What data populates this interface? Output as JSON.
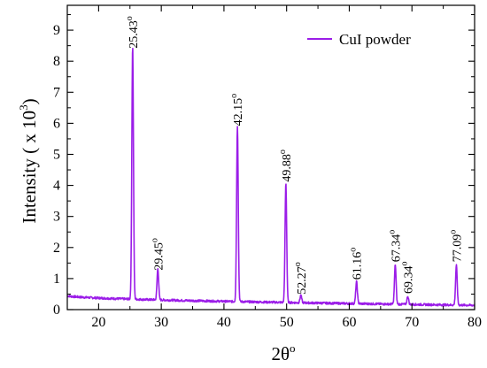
{
  "chart_data": {
    "type": "line",
    "title": "",
    "xlabel": "2θ",
    "xlabel_sup": "o",
    "ylabel": "Intensity ( x 10",
    "ylabel_sup": "3",
    "ylabel_tail": ")",
    "xlim": [
      15,
      80
    ],
    "ylim": [
      0,
      9.8
    ],
    "x_ticks": [
      20,
      30,
      40,
      50,
      60,
      70,
      80
    ],
    "y_ticks": [
      0,
      1,
      2,
      3,
      4,
      5,
      6,
      7,
      8,
      9
    ],
    "grid": false,
    "legend_position": "top-right",
    "series": [
      {
        "name": "CuI powder",
        "color": "#9b1de8",
        "baseline_start": 0.45,
        "baseline_end": 0.14,
        "peaks": [
          {
            "x": 25.43,
            "y": 8.3
          },
          {
            "x": 29.45,
            "y": 1.15
          },
          {
            "x": 42.15,
            "y": 5.8
          },
          {
            "x": 49.88,
            "y": 4.0
          },
          {
            "x": 52.27,
            "y": 0.38
          },
          {
            "x": 61.16,
            "y": 0.85
          },
          {
            "x": 67.34,
            "y": 1.42
          },
          {
            "x": 69.34,
            "y": 0.4
          },
          {
            "x": 77.09,
            "y": 1.42
          }
        ]
      }
    ],
    "annotations": [
      {
        "text": "25.43",
        "sup": "o"
      },
      {
        "text": "29.45",
        "sup": "o"
      },
      {
        "text": "42.15",
        "sup": "o"
      },
      {
        "text": "49.88",
        "sup": "o"
      },
      {
        "text": "52.27",
        "sup": "o"
      },
      {
        "text": "61.16",
        "sup": "o"
      },
      {
        "text": "67.34",
        "sup": "o"
      },
      {
        "text": "69.34",
        "sup": "o"
      },
      {
        "text": "77.09",
        "sup": "o"
      }
    ]
  }
}
